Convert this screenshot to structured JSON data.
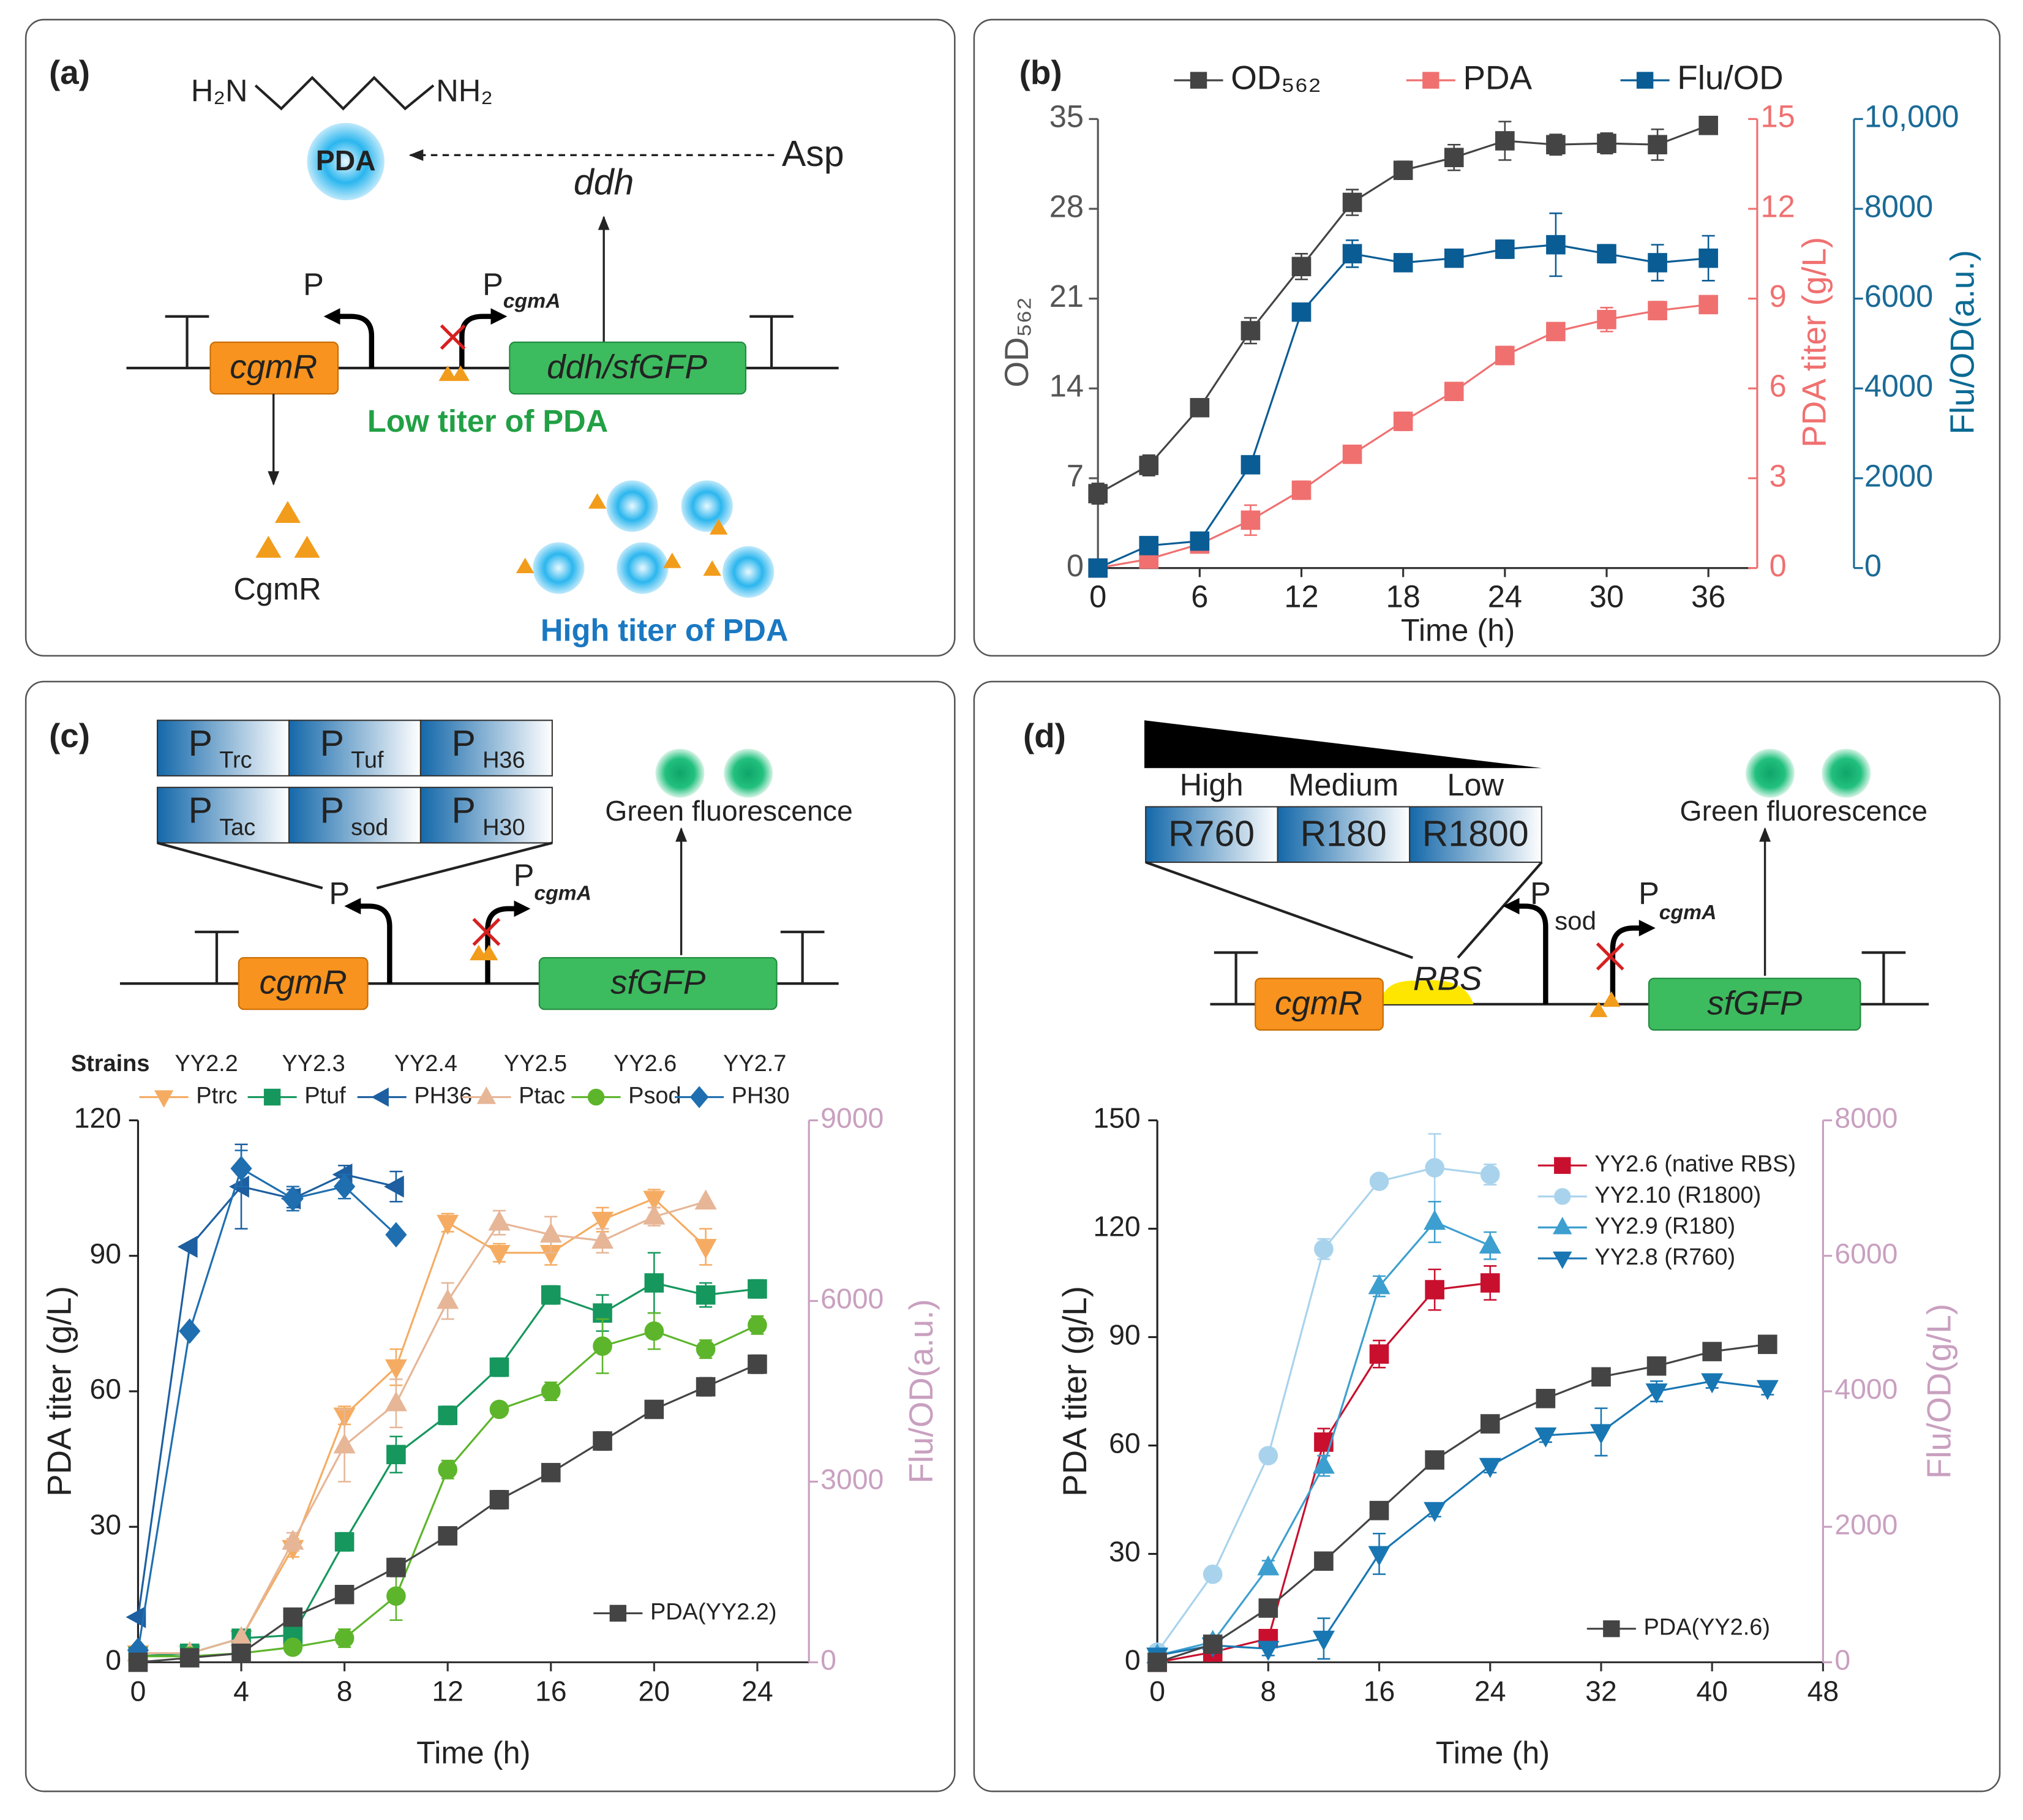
{
  "diagrams": {
    "a": {
      "label": "(a)",
      "amine_left": "H₂N",
      "amine_right": "NH₂",
      "product": "PDA",
      "substrate": "Asp",
      "enzyme": "ddh",
      "promoter": "P",
      "pcgma": {
        "main": "P",
        "sub": "cgmA"
      },
      "regulator_gene": "cgmR",
      "reporter_gene": "ddh/sfGFP",
      "low": "Low titer of PDA",
      "protein": "CgmR",
      "high": "High titer of PDA"
    },
    "c": {
      "label": "(c)",
      "promoters": [
        [
          {
            "main": "P",
            "sub": "Trc"
          },
          {
            "main": "P",
            "sub": "Tuf"
          },
          {
            "main": "P",
            "sub": "H36"
          }
        ],
        [
          {
            "main": "P",
            "sub": "Tac"
          },
          {
            "main": "P",
            "sub": "sod"
          },
          {
            "main": "P",
            "sub": "H30"
          }
        ]
      ],
      "output": "Green fluorescence",
      "promoter": "P",
      "pcgma": {
        "main": "P",
        "sub": "cgmA"
      },
      "regulator_gene": "cgmR",
      "reporter_gene": "sfGFP"
    },
    "d": {
      "label": "(d)",
      "strength": [
        "High",
        "Medium",
        "Low"
      ],
      "rbs_variants": [
        "R760",
        "R180",
        "R1800"
      ],
      "output": "Green fluorescence",
      "psod": {
        "main": "P",
        "sub": "sod"
      },
      "pcgma": {
        "main": "P",
        "sub": "cgmA"
      },
      "regulator_gene": "cgmR",
      "rbs": "RBS",
      "reporter_gene": "sfGFP"
    }
  },
  "chart_data": [
    {
      "type": "line",
      "panel": "(b)",
      "xlabel": "Time (h)",
      "ylabel": "OD₅₆₂",
      "y2label": "PDA titer (g/L)",
      "y3label": "Flu/OD(a.u.)",
      "xlim": [
        0,
        38.5
      ],
      "xticks": [
        0,
        6,
        12,
        18,
        24,
        30,
        36
      ],
      "ylim": [
        0,
        35
      ],
      "yticks": [
        0,
        7,
        14,
        21,
        28,
        35
      ],
      "y2lim": [
        0,
        15
      ],
      "y2ticks": [
        0,
        3,
        6,
        9,
        12,
        15
      ],
      "y3lim": [
        0,
        10000
      ],
      "y3ticks": [
        0,
        2000,
        4000,
        6000,
        8000,
        {
          "value": 10000,
          "label": "10,000"
        }
      ],
      "series": [
        {
          "name": "OD₅₆₂",
          "color": "#444444",
          "marker": "square",
          "x": [
            0,
            3,
            6,
            9,
            12,
            15,
            18,
            21,
            24,
            27,
            30,
            33,
            36
          ],
          "values": [
            5.8,
            8,
            12.5,
            18.5,
            23.5,
            28.5,
            31,
            32,
            33.3,
            33,
            33.1,
            33,
            34.5
          ],
          "errors": [
            0.8,
            0.8,
            0.5,
            1,
            1,
            1,
            0.7,
            1,
            1.5,
            0.8,
            0.8,
            1.2,
            0
          ]
        },
        {
          "name": "PDA",
          "color": "#f07070",
          "marker": "square",
          "axis": "y2",
          "x": [
            0,
            3,
            6,
            9,
            12,
            15,
            18,
            21,
            24,
            27,
            30,
            33,
            36
          ],
          "values": [
            0,
            0.3,
            0.8,
            1.6,
            2.6,
            3.8,
            4.9,
            5.9,
            7.1,
            7.9,
            8.3,
            8.6,
            8.8
          ],
          "errors": [
            0,
            0.2,
            0.2,
            0.5,
            0.3,
            0.2,
            0.3,
            0.2,
            0.3,
            0.2,
            0.4,
            0.3,
            0.2
          ]
        },
        {
          "name": "Flu/OD",
          "color": "#0a5c94",
          "marker": "square",
          "axis": "y3",
          "x": [
            0,
            3,
            6,
            9,
            12,
            15,
            18,
            21,
            24,
            27,
            30,
            33,
            36
          ],
          "values": [
            0,
            500,
            600,
            2300,
            5700,
            7000,
            6800,
            6900,
            7100,
            7200,
            7000,
            6800,
            6900
          ],
          "errors": [
            0,
            100,
            100,
            150,
            100,
            300,
            150,
            100,
            200,
            700,
            200,
            400,
            500
          ]
        }
      ]
    },
    {
      "type": "line",
      "xlabel": "Time (h)",
      "ylabel": "PDA titer (g/L)",
      "y2label": "Flu/OD(a.u.)",
      "strains_title": "Strains",
      "strains": [
        "YY2.2",
        "YY2.3",
        "YY2.4",
        "YY2.5",
        "YY2.6",
        "YY2.7"
      ],
      "xlim": [
        0,
        26
      ],
      "xticks": [
        0,
        4,
        8,
        12,
        16,
        20,
        24
      ],
      "ylim": [
        0,
        120
      ],
      "yticks": [
        0,
        30,
        60,
        90,
        120
      ],
      "y2lim": [
        0,
        9000
      ],
      "y2ticks": [
        0,
        3000,
        6000,
        9000
      ],
      "series": [
        {
          "name": "Ptrc",
          "color": "#f5ac62",
          "marker": "tri-down",
          "axis": "y2",
          "x": [
            0,
            2,
            4,
            6,
            8,
            10,
            12,
            14,
            16,
            18,
            20,
            22
          ],
          "values": [
            150,
            150,
            400,
            1900,
            4100,
            4900,
            7300,
            6800,
            6800,
            7350,
            7700,
            6900
          ],
          "errors": [
            0,
            0,
            0,
            150,
            150,
            300,
            150,
            150,
            200,
            200,
            150,
            300
          ]
        },
        {
          "name": "Ptuf",
          "color": "#16975e",
          "marker": "square",
          "axis": "y2",
          "x": [
            0,
            2,
            4,
            6,
            8,
            10,
            12,
            14,
            16,
            18,
            20,
            22,
            24
          ],
          "values": [
            100,
            150,
            400,
            450,
            2000,
            3450,
            4100,
            4900,
            6100,
            5800,
            6300,
            6100,
            6200
          ],
          "errors": [
            0,
            0,
            0,
            0,
            150,
            300,
            150,
            150,
            150,
            300,
            500,
            200,
            150
          ]
        },
        {
          "name": "PH36",
          "color": "#1d5fa0",
          "marker": "tri-left",
          "axis": "y2",
          "x": [
            0,
            2,
            4,
            6,
            8,
            10
          ],
          "values": [
            750,
            6900,
            7900,
            7700,
            8100,
            7900
          ],
          "errors": [
            0,
            0,
            700,
            150,
            150,
            250
          ]
        },
        {
          "name": "Ptac",
          "color": "#e6b697",
          "marker": "tri-up",
          "axis": "y2",
          "x": [
            0,
            2,
            4,
            6,
            8,
            10,
            12,
            14,
            16,
            18,
            20,
            22
          ],
          "values": [
            150,
            150,
            400,
            2000,
            3600,
            4300,
            6000,
            7300,
            7100,
            7000,
            7400,
            7650
          ],
          "errors": [
            0,
            0,
            0,
            150,
            600,
            400,
            300,
            200,
            300,
            200,
            150,
            0
          ]
        },
        {
          "name": "Psod",
          "color": "#5db52b",
          "marker": "circle",
          "axis": "y2",
          "x": [
            0,
            2,
            4,
            6,
            8,
            10,
            12,
            14,
            16,
            18,
            20,
            22,
            24
          ],
          "values": [
            100,
            100,
            150,
            250,
            400,
            1100,
            3200,
            4200,
            4500,
            5250,
            5500,
            5200,
            5600
          ],
          "errors": [
            0,
            0,
            0,
            0,
            150,
            400,
            150,
            0,
            150,
            450,
            300,
            150,
            150
          ]
        },
        {
          "name": "PH30",
          "color": "#1f6fb0",
          "marker": "diamond",
          "axis": "y2",
          "x": [
            0,
            2,
            4,
            6,
            8,
            10
          ],
          "values": [
            200,
            5500,
            8200,
            7700,
            7900,
            7100
          ],
          "errors": [
            0,
            0,
            300,
            200,
            200,
            0
          ]
        },
        {
          "name": "PDA(YY2.2)",
          "color": "#444444",
          "marker": "square",
          "x": [
            0,
            2,
            4,
            6,
            8,
            10,
            12,
            14,
            16,
            18,
            20,
            22,
            24
          ],
          "values": [
            0,
            1,
            2,
            10,
            15,
            21,
            28,
            36,
            42,
            49,
            56,
            61,
            66
          ],
          "errors": [
            0,
            0,
            0,
            1,
            0,
            2,
            0,
            2,
            1,
            2,
            1,
            2,
            2
          ]
        }
      ]
    },
    {
      "type": "line",
      "xlabel": "Time (h)",
      "ylabel": "PDA titer (g/L)",
      "y2label": "Flu/OD(g/L)",
      "xlim": [
        0,
        48
      ],
      "xticks": [
        0,
        8,
        16,
        24,
        32,
        40,
        48
      ],
      "ylim": [
        0,
        150
      ],
      "yticks": [
        0,
        30,
        60,
        90,
        120,
        150
      ],
      "y2lim": [
        0,
        8000
      ],
      "y2ticks": [
        0,
        2000,
        4000,
        6000,
        8000
      ],
      "series": [
        {
          "name": "YY2.6 (native RBS)",
          "color": "#c8102e",
          "marker": "square",
          "axis": "y2",
          "x": [
            0,
            4,
            8,
            12,
            16,
            20,
            24
          ],
          "values": [
            0,
            150,
            350,
            3250,
            4550,
            5500,
            5600
          ],
          "errors": [
            0,
            50,
            100,
            200,
            200,
            300,
            250
          ]
        },
        {
          "name": "YY2.10 (R1800)",
          "color": "#a9d3ec",
          "marker": "circle",
          "axis": "y2",
          "x": [
            0,
            4,
            8,
            12,
            16,
            20,
            24
          ],
          "values": [
            150,
            1300,
            3050,
            6100,
            7100,
            7300,
            7200
          ],
          "errors": [
            0,
            50,
            100,
            150,
            100,
            500,
            150
          ]
        },
        {
          "name": "YY2.9 (R180)",
          "color": "#3d9fcf",
          "marker": "tri-up",
          "axis": "y2",
          "x": [
            0,
            4,
            8,
            12,
            16,
            20,
            24
          ],
          "values": [
            100,
            300,
            1400,
            2900,
            5550,
            6500,
            6150
          ],
          "errors": [
            0,
            50,
            100,
            150,
            150,
            300,
            200
          ]
        },
        {
          "name": "YY2.8 (R760)",
          "color": "#1877b3",
          "marker": "tri-down",
          "axis": "y2",
          "x": [
            0,
            4,
            8,
            12,
            16,
            20,
            24,
            28,
            32,
            36,
            40,
            44
          ],
          "values": [
            100,
            250,
            200,
            350,
            1600,
            2250,
            2900,
            3350,
            3400,
            4000,
            4150,
            4050
          ],
          "errors": [
            0,
            50,
            100,
            300,
            300,
            100,
            100,
            100,
            350,
            150,
            100,
            100
          ]
        },
        {
          "name": "PDA(YY2.6)",
          "color": "#444444",
          "marker": "square",
          "x": [
            0,
            4,
            8,
            12,
            16,
            20,
            24,
            28,
            32,
            36,
            40,
            44
          ],
          "values": [
            0,
            5,
            15,
            28,
            42,
            56,
            66,
            73,
            79,
            82,
            86,
            88
          ],
          "errors": [
            0,
            0,
            0,
            0,
            0,
            0,
            0,
            0,
            1,
            1,
            2,
            2
          ]
        }
      ]
    }
  ]
}
